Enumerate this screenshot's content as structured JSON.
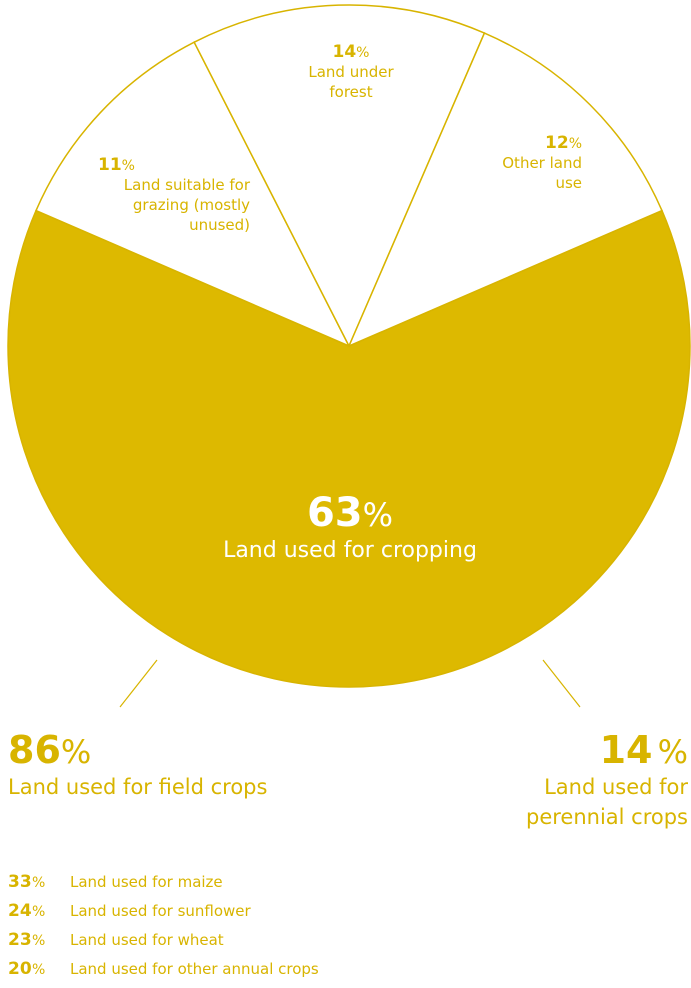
{
  "chart_data": {
    "type": "pie",
    "colors": {
      "primary": "#ddb900",
      "secondary": "#ffffff",
      "stroke": "#d8b400",
      "text_on_primary": "#ffffff"
    },
    "slices": [
      {
        "value": 63,
        "label": "Land used for cropping"
      },
      {
        "value": 11,
        "label": "Land suitable for grazing (mostly unused)"
      },
      {
        "value": 14,
        "label": "Land under forest"
      },
      {
        "value": 12,
        "label": "Other land use"
      }
    ],
    "percent_symbol": "%",
    "breakdown": {
      "field_crops": {
        "value": 86,
        "label": "Land used for field crops"
      },
      "perennial_crops": {
        "value": 14,
        "label": "Land used for perennial crops"
      },
      "field_crops_detail": [
        {
          "value": 33,
          "label": "Land used for maize"
        },
        {
          "value": 24,
          "label": "Land used for sunflower"
        },
        {
          "value": 23,
          "label": "Land used for wheat"
        },
        {
          "value": 20,
          "label": "Land used for other annual crops"
        }
      ]
    }
  }
}
